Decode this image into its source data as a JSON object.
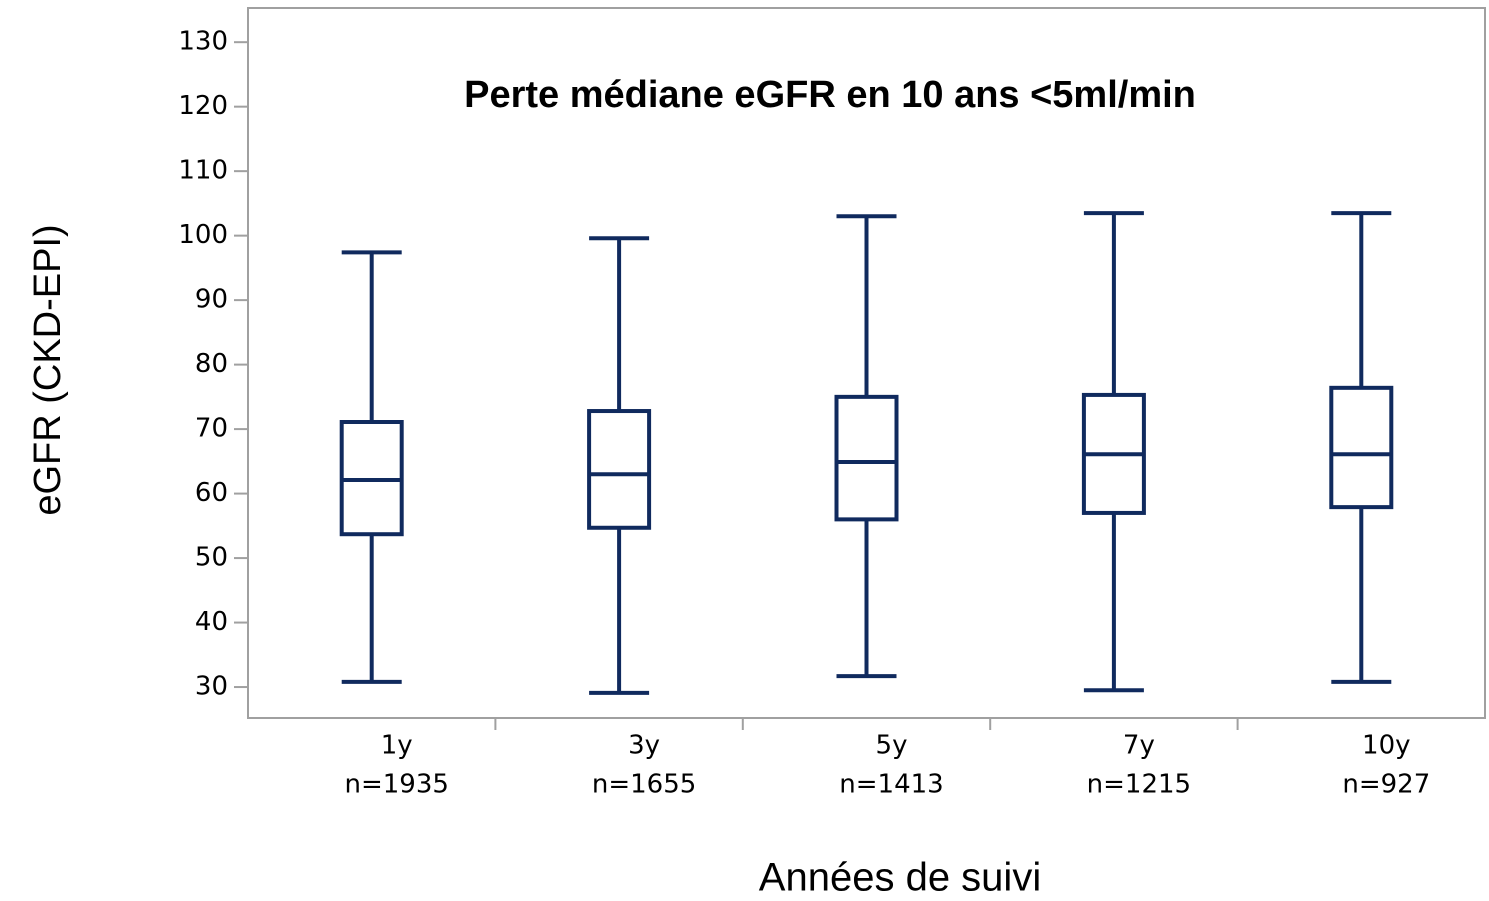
{
  "chart_data": {
    "type": "box",
    "annotation": "Perte médiane eGFR en 10 ans <5ml/min",
    "y_label": "eGFR (CKD-EPI)",
    "x_label": "Années de suivi",
    "categories": [
      "1y",
      "3y",
      "5y",
      "7y",
      "10y"
    ],
    "category_notes": [
      "n=1935",
      "n=1655",
      "n=1413",
      "n=1215",
      "n=927"
    ],
    "whislo": [
      30.8,
      29.1,
      31.7,
      29.5,
      30.8
    ],
    "q1": [
      53.7,
      54.7,
      56,
      57,
      57.9
    ],
    "med": [
      62.1,
      63,
      64.9,
      66.1,
      66.1
    ],
    "q3": [
      71.1,
      72.8,
      75,
      75.3,
      76.4
    ],
    "whishi": [
      97.4,
      99.6,
      103,
      103.5,
      103.5
    ],
    "color": "#102a5e",
    "annotation_color": "#c00000",
    "ylim": [
      25.2,
      135.3
    ],
    "yticks": [
      30,
      40,
      50,
      60,
      70,
      80,
      90,
      100,
      110,
      120,
      130
    ]
  }
}
